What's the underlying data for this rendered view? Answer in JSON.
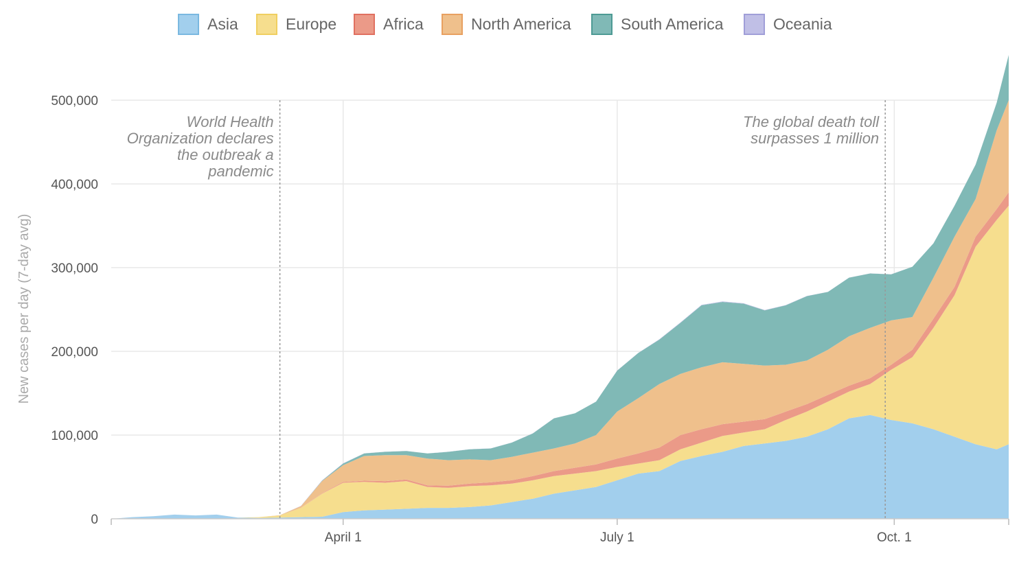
{
  "chart_data": {
    "type": "area",
    "stacked": true,
    "title": "",
    "xlabel": "",
    "ylabel": "New cases per day (7-day avg)",
    "ylim": [
      0,
      555000
    ],
    "xlim": [
      "Jan 15",
      "Nov 8"
    ],
    "yticks": [
      0,
      100000,
      200000,
      300000,
      400000,
      500000
    ],
    "ytick_labels": [
      "0",
      "100,000",
      "200,000",
      "300,000",
      "400,000",
      "500,000"
    ],
    "xticks": [
      {
        "date": "Apr 1",
        "label": "April 1"
      },
      {
        "date": "Jul 1",
        "label": "July 1"
      },
      {
        "date": "Oct 1",
        "label": "Oct. 1"
      }
    ],
    "grid": true,
    "legend_position": "top",
    "x": [
      "Jan 15",
      "Jan 22",
      "Jan 29",
      "Feb 5",
      "Feb 12",
      "Feb 19",
      "Feb 26",
      "Mar 4",
      "Mar 11",
      "Mar 18",
      "Mar 25",
      "Apr 1",
      "Apr 8",
      "Apr 15",
      "Apr 22",
      "Apr 29",
      "May 6",
      "May 13",
      "May 20",
      "May 27",
      "Jun 3",
      "Jun 10",
      "Jun 17",
      "Jun 24",
      "Jul 1",
      "Jul 8",
      "Jul 15",
      "Jul 22",
      "Jul 29",
      "Aug 5",
      "Aug 12",
      "Aug 19",
      "Aug 26",
      "Sep 2",
      "Sep 9",
      "Sep 16",
      "Sep 23",
      "Sep 30",
      "Oct 7",
      "Oct 14",
      "Oct 21",
      "Oct 28",
      "Nov 4",
      "Nov 8"
    ],
    "series": [
      {
        "name": "Asia",
        "color": "#a2cfed",
        "stroke": "#7ab8e0",
        "values": [
          0,
          2000,
          3000,
          5000,
          4000,
          5000,
          1500,
          1000,
          1500,
          2000,
          2500,
          8000,
          10000,
          11000,
          12000,
          13000,
          13000,
          14000,
          16000,
          20000,
          24000,
          30000,
          34000,
          38000,
          46000,
          54000,
          57000,
          69000,
          75000,
          80000,
          87000,
          90000,
          93000,
          98000,
          107000,
          120000,
          124000,
          118000,
          114000,
          107000,
          98000,
          89000,
          83000,
          89000
        ]
      },
      {
        "name": "Europe",
        "color": "#f6de8e",
        "stroke": "#f0cf60",
        "values": [
          0,
          0,
          0,
          0,
          0,
          0,
          0,
          1000,
          2500,
          11000,
          27500,
          35000,
          34000,
          32000,
          33000,
          25000,
          24000,
          25000,
          24000,
          22000,
          22000,
          21000,
          20000,
          19000,
          16000,
          12000,
          13000,
          14000,
          16000,
          19000,
          16000,
          17000,
          25000,
          30000,
          33000,
          32000,
          37000,
          60000,
          79000,
          121000,
          169000,
          236000,
          274000,
          285000
        ]
      },
      {
        "name": "Africa",
        "color": "#eb9a88",
        "stroke": "#e07060",
        "values": [
          0,
          0,
          0,
          0,
          0,
          0,
          0,
          0,
          0,
          200,
          500,
          1000,
          1500,
          2000,
          2000,
          2000,
          2500,
          3000,
          3500,
          4000,
          5000,
          6000,
          7000,
          8000,
          10000,
          12000,
          15000,
          17000,
          16000,
          14000,
          13000,
          12000,
          10000,
          9000,
          8000,
          7000,
          7000,
          6000,
          9000,
          11000,
          10000,
          12000,
          13000,
          16000
        ]
      },
      {
        "name": "North America",
        "color": "#efc08c",
        "stroke": "#e8a060",
        "values": [
          0,
          0,
          0,
          0,
          0,
          0,
          0,
          0,
          300,
          2000,
          14500,
          20000,
          29500,
          31000,
          29000,
          32000,
          30500,
          29000,
          26500,
          28000,
          28000,
          27000,
          29000,
          35000,
          56000,
          66000,
          76000,
          73000,
          74000,
          74000,
          69000,
          64000,
          56000,
          52000,
          54000,
          59000,
          60000,
          53000,
          39000,
          49000,
          60000,
          45000,
          94000,
          110000
        ]
      },
      {
        "name": "South America",
        "color": "#80b9b6",
        "stroke": "#4d9a94",
        "values": [
          0,
          0,
          0,
          0,
          0,
          0,
          0,
          0,
          0,
          0,
          500,
          2000,
          3000,
          4000,
          5000,
          6000,
          10000,
          12000,
          14000,
          17000,
          23000,
          36000,
          36000,
          40000,
          49000,
          54000,
          53000,
          61000,
          74000,
          72000,
          72000,
          66000,
          71000,
          77000,
          69000,
          70000,
          65000,
          55000,
          60000,
          41000,
          37000,
          41000,
          33000,
          54000
        ]
      },
      {
        "name": "Oceania",
        "color": "#c0bfe6",
        "stroke": "#a09ed8",
        "values": [
          0,
          0,
          0,
          0,
          0,
          0,
          0,
          0,
          0,
          300,
          400,
          300,
          200,
          100,
          100,
          100,
          100,
          100,
          100,
          100,
          100,
          100,
          100,
          100,
          100,
          200,
          400,
          500,
          500,
          600,
          500,
          400,
          300,
          200,
          100,
          100,
          100,
          100,
          100,
          100,
          100,
          100,
          100,
          100
        ]
      }
    ],
    "annotations": [
      {
        "date": "Mar 11",
        "lines": [
          "World Health",
          "Organization declares",
          "the outbreak a",
          "pandemic"
        ]
      },
      {
        "date": "Sep 28",
        "lines": [
          "The global death toll",
          "surpasses 1 million"
        ]
      }
    ]
  }
}
